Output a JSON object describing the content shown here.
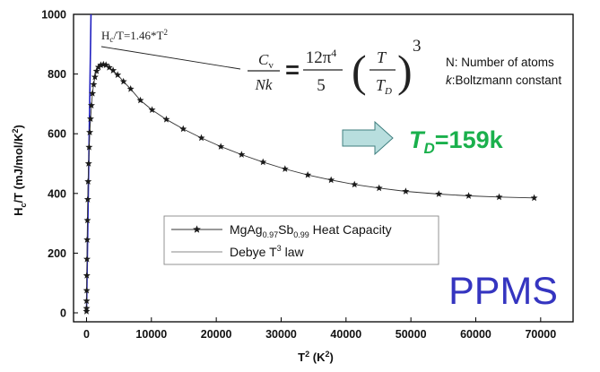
{
  "chart_data": {
    "type": "scatter",
    "xlabel": "T² (K²)",
    "ylabel": "Hₒ/T (mJ/mol/K²)",
    "xlim": [
      -2000,
      75000
    ],
    "ylim": [
      -30,
      1000
    ],
    "x_ticks": [
      0,
      10000,
      20000,
      30000,
      40000,
      50000,
      60000,
      70000
    ],
    "y_ticks": [
      0,
      200,
      400,
      600,
      800,
      1000
    ],
    "grid": false,
    "legend_position": "bottom-center",
    "series": [
      {
        "name": "MgAg0.97Sb0.99 Heat Capacity",
        "style": "line-with-star-markers",
        "color": "#333333",
        "x": [
          0,
          5,
          12,
          25,
          45,
          70,
          100,
          140,
          190,
          250,
          320,
          400,
          500,
          620,
          760,
          920,
          1100,
          1300,
          1550,
          1850,
          2200,
          2600,
          3000,
          3500,
          4100,
          4800,
          5700,
          6800,
          8300,
          10100,
          12300,
          14900,
          17700,
          20700,
          23900,
          27200,
          30600,
          34100,
          37700,
          41300,
          45100,
          49200,
          54300,
          58900,
          63600,
          69000
        ],
        "y": [
          5,
          15,
          40,
          75,
          125,
          180,
          245,
          310,
          380,
          440,
          500,
          555,
          605,
          650,
          695,
          735,
          765,
          790,
          810,
          823,
          830,
          832,
          830,
          822,
          812,
          797,
          775,
          750,
          712,
          680,
          648,
          616,
          586,
          557,
          530,
          505,
          482,
          462,
          445,
          430,
          418,
          407,
          398,
          392,
          388,
          385
        ]
      },
      {
        "name": "Debye T³ law",
        "style": "line",
        "color": "#2020c0",
        "slope": 1.46,
        "x": [
          0,
          690
        ],
        "y": [
          0,
          1007
        ]
      }
    ],
    "legend": {
      "entries": [
        {
          "base": "MgAg",
          "sub1": "0.97",
          "mid": "Sb",
          "sub2": "0.99",
          "tail": " Heat Capacity"
        },
        {
          "base": "Debye T",
          "sup": "3",
          "tail": " law"
        }
      ]
    },
    "annotations": {
      "fit_label": {
        "a": "H",
        "sub": "c",
        "b": "/T=1.46*T",
        "sup": "2"
      },
      "formula": {
        "lhs_num": "C",
        "lhs_num_sub": "v",
        "lhs_den": "Nk",
        "eq": "=",
        "rhs_num": "12π",
        "rhs_num_sup": "4",
        "rhs_den": "5",
        "frac_num": "T",
        "frac_den": "T",
        "frac_den_sub": "D",
        "power": "3"
      },
      "notes": [
        "N: Number of atoms",
        "k:Boltzmann constant"
      ],
      "debye_temperature": {
        "symbol": "T",
        "sub": "D",
        "value": "=159k"
      },
      "instrument": "PPMS"
    },
    "colors": {
      "td_label": "#1ab04c",
      "ppms": "#3535c0",
      "arrow_fill": "#b8dede",
      "arrow_stroke": "#3f7f7f",
      "debye_line": "#2020c0"
    }
  }
}
